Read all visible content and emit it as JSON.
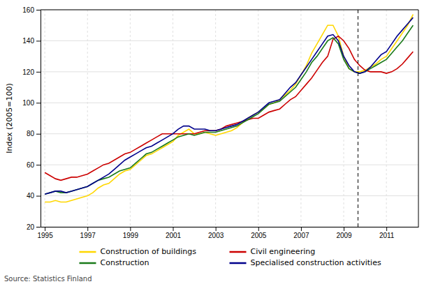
{
  "chart_data": {
    "type": "line",
    "ylabel": "Index (2005=100)",
    "source": "Source: Statistics Finland",
    "xlim": [
      1994.8,
      2012.5
    ],
    "ylim": [
      20,
      160
    ],
    "yticks": [
      20,
      40,
      60,
      80,
      100,
      120,
      140,
      160
    ],
    "xticks": [
      1995,
      1997,
      1999,
      2001,
      2003,
      2005,
      2007,
      2009,
      2011
    ],
    "grid": true,
    "x": [
      1995.0,
      1995.25,
      1995.5,
      1995.75,
      1996.0,
      1996.25,
      1996.5,
      1996.75,
      1997.0,
      1997.25,
      1997.5,
      1997.75,
      1998.0,
      1998.25,
      1998.5,
      1998.75,
      1999.0,
      1999.25,
      1999.5,
      1999.75,
      2000.0,
      2000.25,
      2000.5,
      2000.75,
      2001.0,
      2001.25,
      2001.5,
      2001.75,
      2002.0,
      2002.25,
      2002.5,
      2002.75,
      2003.0,
      2003.25,
      2003.5,
      2003.75,
      2004.0,
      2004.25,
      2004.5,
      2004.75,
      2005.0,
      2005.25,
      2005.5,
      2005.75,
      2006.0,
      2006.25,
      2006.5,
      2006.75,
      2007.0,
      2007.25,
      2007.5,
      2007.75,
      2008.0,
      2008.25,
      2008.5,
      2008.75,
      2009.0,
      2009.25,
      2009.5,
      2009.75,
      2010.0,
      2010.25,
      2010.5,
      2010.75,
      2011.0,
      2011.25,
      2011.5,
      2011.75,
      2012.0,
      2012.25
    ],
    "series": [
      {
        "name": "Construction of buildings",
        "color": "#FFD700",
        "values": [
          36,
          36,
          37,
          36,
          36,
          37,
          38,
          39,
          40,
          42,
          45,
          47,
          48,
          51,
          54,
          56,
          57,
          60,
          63,
          66,
          67,
          69,
          71,
          73,
          75,
          79,
          81,
          83,
          80,
          80,
          81,
          80,
          79,
          80,
          81,
          82,
          84,
          87,
          90,
          92,
          94,
          96,
          99,
          100,
          102,
          105,
          108,
          112,
          118,
          124,
          132,
          138,
          144,
          150,
          150,
          143,
          130,
          122,
          120,
          120,
          121,
          123,
          125,
          128,
          130,
          135,
          140,
          145,
          150,
          157
        ]
      },
      {
        "name": "Civil engineering",
        "color": "#CC0000",
        "values": [
          55,
          53,
          51,
          50,
          51,
          52,
          52,
          53,
          54,
          56,
          58,
          60,
          61,
          63,
          65,
          67,
          68,
          70,
          72,
          74,
          76,
          78,
          80,
          80,
          80,
          80,
          80,
          80,
          80,
          81,
          82,
          82,
          82,
          83,
          85,
          86,
          87,
          88,
          89,
          90,
          90,
          92,
          94,
          95,
          96,
          99,
          102,
          104,
          108,
          112,
          116,
          121,
          126,
          130,
          141,
          143,
          140,
          135,
          128,
          124,
          121,
          120,
          120,
          120,
          119,
          120,
          122,
          125,
          129,
          133
        ]
      },
      {
        "name": "Construction",
        "color": "#1a7a1a",
        "values": [
          41,
          42,
          43,
          42,
          42,
          43,
          44,
          45,
          46,
          48,
          50,
          51,
          52,
          54,
          56,
          57,
          58,
          61,
          64,
          67,
          68,
          70,
          72,
          74,
          76,
          78,
          79,
          80,
          79,
          80,
          81,
          81,
          81,
          82,
          83,
          84,
          85,
          87,
          89,
          91,
          93,
          96,
          99,
          100,
          101,
          104,
          107,
          110,
          115,
          120,
          126,
          130,
          135,
          140,
          142,
          138,
          128,
          122,
          120,
          119,
          120,
          122,
          124,
          126,
          128,
          132,
          136,
          140,
          145,
          150
        ]
      },
      {
        "name": "Specialised construction activities",
        "color": "#00008B",
        "values": [
          41,
          42,
          43,
          43,
          42,
          43,
          44,
          45,
          46,
          48,
          50,
          52,
          54,
          57,
          60,
          63,
          65,
          67,
          69,
          71,
          72,
          74,
          76,
          78,
          80,
          83,
          85,
          85,
          83,
          83,
          83,
          82,
          82,
          83,
          84,
          85,
          86,
          88,
          90,
          92,
          94,
          97,
          100,
          101,
          102,
          106,
          110,
          113,
          118,
          123,
          128,
          133,
          138,
          143,
          144,
          140,
          130,
          124,
          120,
          119,
          120,
          123,
          127,
          131,
          133,
          138,
          143,
          147,
          151,
          155
        ]
      }
    ],
    "vlines": [
      {
        "x": 2009.67,
        "color": "#000000",
        "line_style": "dashed"
      }
    ]
  }
}
